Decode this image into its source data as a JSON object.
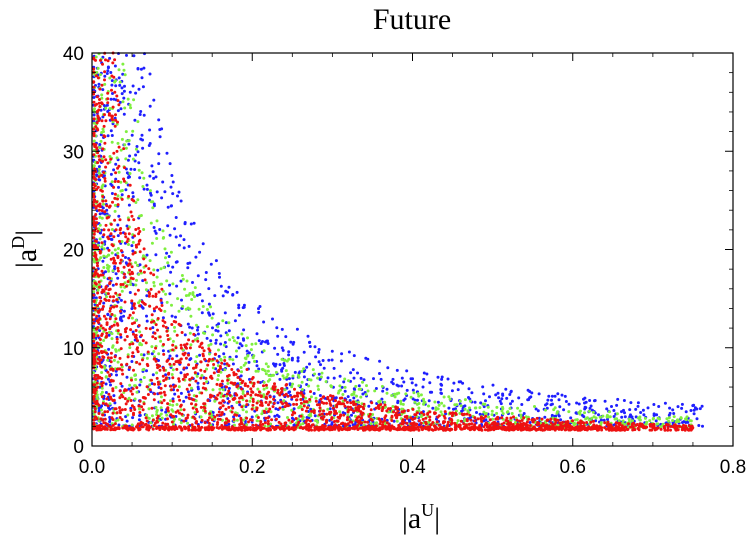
{
  "chart_data": {
    "type": "scatter",
    "title": "Future",
    "xlabel": {
      "base": "|a",
      "sup": "U",
      "close": "|"
    },
    "ylabel": {
      "base": "|a",
      "sup": "D",
      "close": "|"
    },
    "xlim": [
      0,
      0.8
    ],
    "ylim": [
      0,
      40
    ],
    "x_ticks": [
      "0.0",
      "0.2",
      "0.4",
      "0.6",
      "0.8"
    ],
    "y_ticks": [
      "0",
      "10",
      "20",
      "30",
      "40"
    ],
    "grid": false,
    "colors": {
      "blue": "#1f1fff",
      "green": "#7fef3f",
      "red": "#ee1111"
    },
    "series": [
      {
        "color": "#1f1fff",
        "k": 3.2,
        "density": 1500,
        "floor": 2.0
      },
      {
        "color": "#7fef3f",
        "k": 2.3,
        "density": 1200,
        "floor": 1.8
      },
      {
        "color": "#ee1111",
        "k": 1.6,
        "density": 1900,
        "floor": 1.6,
        "band_y": 1.8,
        "band_xmax": 0.67
      }
    ]
  }
}
